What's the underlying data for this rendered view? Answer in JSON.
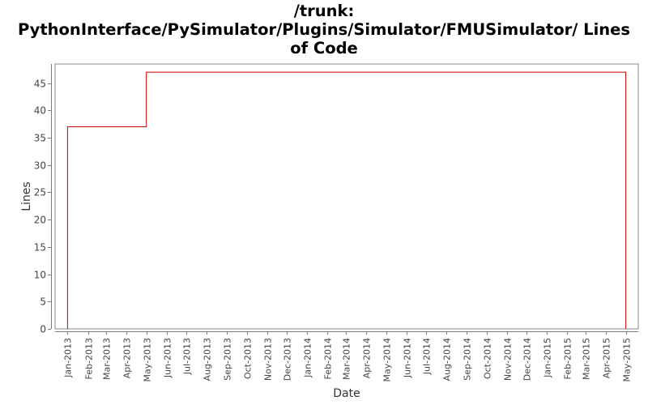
{
  "title": {
    "lines": [
      "/trunk:",
      "PythonInterface/PySimulator/Plugins/Simulator/FMUSimulator/ Lines",
      "of Code"
    ]
  },
  "chart_data": {
    "type": "line",
    "step": true,
    "title": "/trunk: PythonInterface/PySimulator/Plugins/Simulator/FMUSimulator/ Lines of Code",
    "xlabel": "Date",
    "ylabel": "Lines",
    "ylim": [
      0,
      48.5
    ],
    "yticks": [
      0,
      5,
      10,
      15,
      20,
      25,
      30,
      35,
      40,
      45
    ],
    "xticks": [
      "Jan-2013",
      "Feb-2013",
      "Mar-2013",
      "Apr-2013",
      "May-2013",
      "Jun-2013",
      "Jul-2013",
      "Aug-2013",
      "Sep-2013",
      "Oct-2013",
      "Nov-2013",
      "Dec-2013",
      "Jan-2014",
      "Feb-2014",
      "Mar-2014",
      "Apr-2014",
      "May-2014",
      "Jun-2014",
      "Jul-2014",
      "Aug-2014",
      "Sep-2014",
      "Oct-2014",
      "Nov-2014",
      "Dec-2014",
      "Jan-2015",
      "Feb-2015",
      "Mar-2015",
      "Apr-2015",
      "May-2015"
    ],
    "xlim": [
      "2012-12-13",
      "2015-05-20"
    ],
    "grid": false,
    "series": [
      {
        "color": "#cc0000",
        "points": [
          {
            "x": "2013-01-01",
            "y": 0
          },
          {
            "x": "2013-01-01",
            "y": 37
          },
          {
            "x": "2013-05-01",
            "y": 37
          },
          {
            "x": "2013-05-01",
            "y": 47
          },
          {
            "x": "2015-05-01",
            "y": 47
          },
          {
            "x": "2015-05-01",
            "y": 0
          }
        ]
      }
    ]
  }
}
